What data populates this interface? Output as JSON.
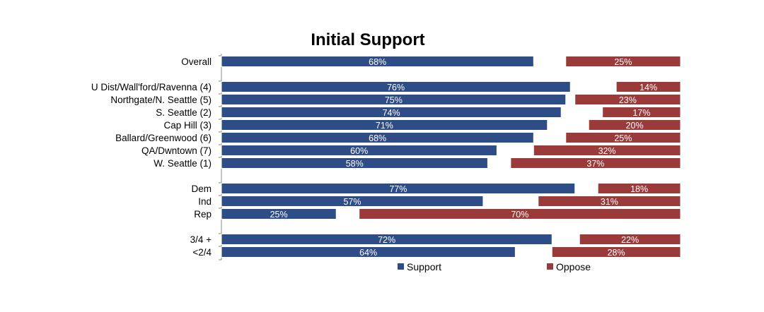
{
  "chart_data": {
    "type": "bar",
    "orientation": "horizontal",
    "stacked_diverging": true,
    "title": "Initial Support",
    "groups": [
      {
        "rows": [
          {
            "label": "Overall",
            "support": 68,
            "oppose": 25
          }
        ]
      },
      {
        "rows": [
          {
            "label": "U Dist/Wall'ford/Ravenna (4)",
            "support": 76,
            "oppose": 14
          },
          {
            "label": "Northgate/N. Seattle (5)",
            "support": 75,
            "oppose": 23
          },
          {
            "label": "S. Seattle (2)",
            "support": 74,
            "oppose": 17
          },
          {
            "label": "Cap Hill  (3)",
            "support": 71,
            "oppose": 20
          },
          {
            "label": "Ballard/Greenwood (6)",
            "support": 68,
            "oppose": 25
          },
          {
            "label": "QA/Dwntown (7)",
            "support": 60,
            "oppose": 32
          },
          {
            "label": "W. Seattle (1)",
            "support": 58,
            "oppose": 37
          }
        ]
      },
      {
        "rows": [
          {
            "label": "Dem",
            "support": 77,
            "oppose": 18
          },
          {
            "label": "Ind",
            "support": 57,
            "oppose": 31
          },
          {
            "label": "Rep",
            "support": 25,
            "oppose": 70
          }
        ]
      },
      {
        "rows": [
          {
            "label": "3/4 +",
            "support": 72,
            "oppose": 22
          },
          {
            "label": "<2/4",
            "support": 64,
            "oppose": 28
          }
        ]
      }
    ],
    "series": [
      {
        "name": "Support",
        "color": "#2E4C86"
      },
      {
        "name": "Oppose",
        "color": "#9B3A3A"
      }
    ],
    "value_format": "percent",
    "legend_position": "bottom"
  }
}
